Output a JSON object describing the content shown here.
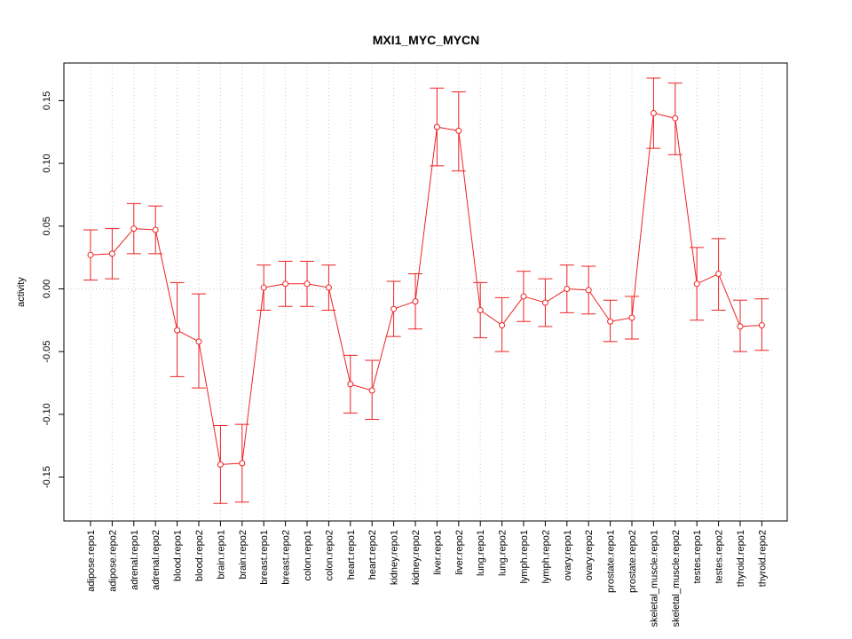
{
  "chart_data": {
    "type": "line",
    "title": "MXI1_MYC_MYCN",
    "xlabel": "",
    "ylabel": "activity",
    "ylim": [
      -0.185,
      0.18
    ],
    "yticks": [
      -0.15,
      -0.1,
      -0.05,
      0.0,
      0.05,
      0.1,
      0.15
    ],
    "ytick_labels": [
      "-0.15",
      "-0.10",
      "-0.05",
      "0.00",
      "0.05",
      "0.10",
      "0.15"
    ],
    "grid": true,
    "line_color": "#ee2222",
    "grid_color": "#c8c8c8",
    "categories": [
      "adipose.repo1",
      "adipose.repo2",
      "adrenal.repo1",
      "adrenal.repo2",
      "blood.repo1",
      "blood.repo2",
      "brain.repo1",
      "brain.repo2",
      "breast.repo1",
      "breast.repo2",
      "colon.repo1",
      "colon.repo2",
      "heart.repo1",
      "heart.repo2",
      "kidney.repo1",
      "kidney.repo2",
      "liver.repo1",
      "liver.repo2",
      "lung.repo1",
      "lung.repo2",
      "lymph.repo1",
      "lymph.repo2",
      "ovary.repo1",
      "ovary.repo2",
      "prostate.repo1",
      "prostate.repo2",
      "skeletal_muscle.repo1",
      "skeletal_muscle.repo2",
      "testes.repo1",
      "testes.repo2",
      "thyroid.repo1",
      "thyroid.repo2"
    ],
    "values": [
      0.027,
      0.028,
      0.048,
      0.047,
      -0.033,
      -0.042,
      -0.14,
      -0.139,
      0.001,
      0.004,
      0.004,
      0.001,
      -0.076,
      -0.081,
      -0.016,
      -0.01,
      0.129,
      0.126,
      -0.017,
      -0.029,
      -0.006,
      -0.011,
      0.0,
      -0.001,
      -0.026,
      -0.023,
      0.14,
      0.136,
      0.004,
      0.012,
      -0.03,
      -0.029
    ],
    "upper": [
      0.047,
      0.048,
      0.068,
      0.066,
      0.005,
      -0.004,
      -0.109,
      -0.108,
      0.019,
      0.022,
      0.022,
      0.019,
      -0.053,
      -0.057,
      0.006,
      0.012,
      0.16,
      0.157,
      0.005,
      -0.007,
      0.014,
      0.008,
      0.019,
      0.018,
      -0.009,
      -0.006,
      0.168,
      0.164,
      0.033,
      0.04,
      -0.009,
      -0.008
    ],
    "lower": [
      0.007,
      0.008,
      0.028,
      0.028,
      -0.07,
      -0.079,
      -0.171,
      -0.17,
      -0.017,
      -0.014,
      -0.014,
      -0.017,
      -0.099,
      -0.104,
      -0.038,
      -0.032,
      0.098,
      0.094,
      -0.039,
      -0.05,
      -0.026,
      -0.03,
      -0.019,
      -0.02,
      -0.042,
      -0.04,
      0.112,
      0.107,
      -0.025,
      -0.017,
      -0.05,
      -0.049
    ]
  }
}
